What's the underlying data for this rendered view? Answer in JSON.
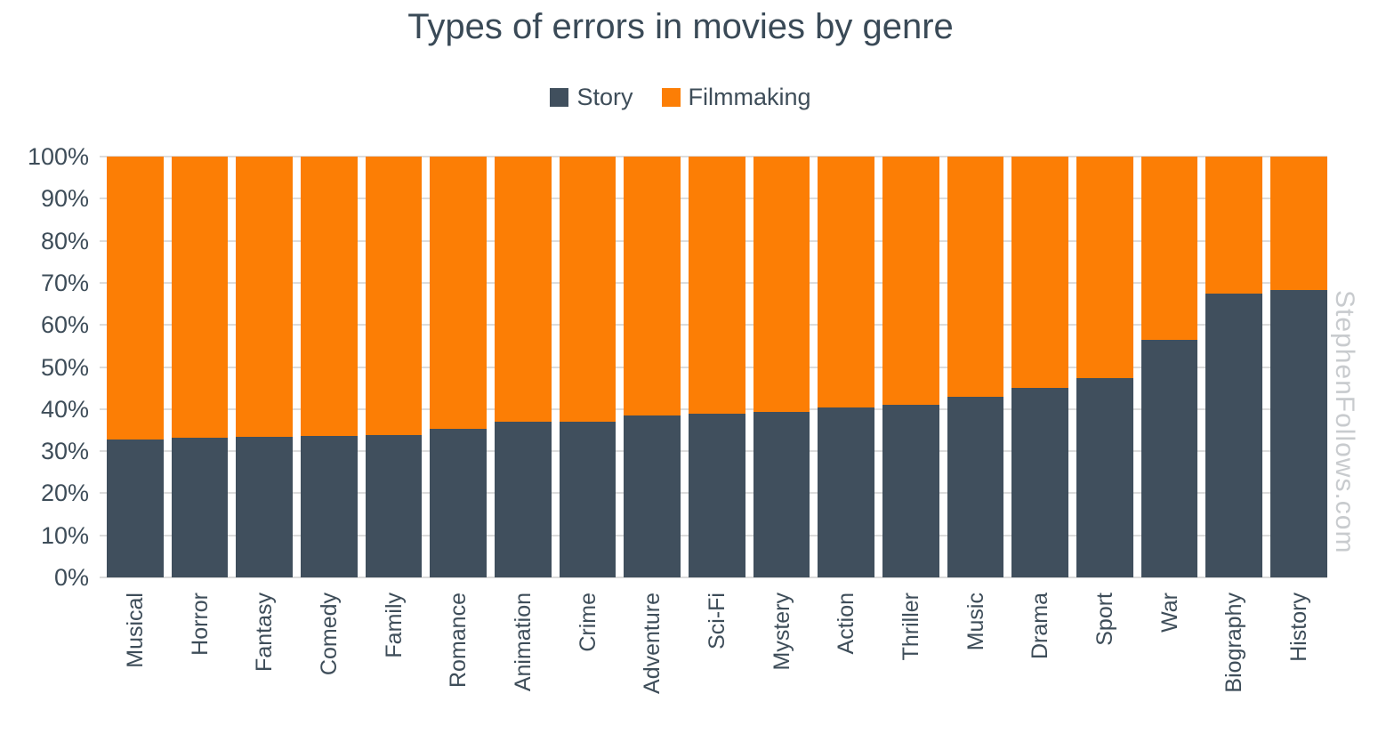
{
  "title": "Types of errors in movies by genre",
  "watermark": "StephenFollows.com",
  "colors": {
    "story": "#404f5d",
    "filmmaking": "#fc7e05",
    "gridline": "#dcdcdc",
    "axis_text": "#3e4d59",
    "title_text": "#3a4a57",
    "watermark_text": "#c8cbce",
    "background": "#ffffff"
  },
  "legend": {
    "items": [
      {
        "label": "Story",
        "color_key": "story"
      },
      {
        "label": "Filmmaking",
        "color_key": "filmmaking"
      }
    ]
  },
  "chart_data": {
    "type": "bar",
    "stacked": true,
    "percent_stacked": true,
    "title": "Types of errors in movies by genre",
    "xlabel": "",
    "ylabel": "",
    "ylim": [
      0,
      100
    ],
    "yticks": [
      "0%",
      "10%",
      "20%",
      "30%",
      "40%",
      "50%",
      "60%",
      "70%",
      "80%",
      "90%",
      "100%"
    ],
    "grid": true,
    "legend_position": "top",
    "categories": [
      "Musical",
      "Horror",
      "Fantasy",
      "Comedy",
      "Family",
      "Romance",
      "Animation",
      "Crime",
      "Adventure",
      "Sci-Fi",
      "Mystery",
      "Action",
      "Thriller",
      "Music",
      "Drama",
      "Sport",
      "War",
      "Biography",
      "History"
    ],
    "series": [
      {
        "name": "Story",
        "values": [
          32.8,
          33.1,
          33.5,
          33.6,
          33.8,
          35.3,
          36.9,
          37.1,
          38.5,
          38.9,
          39.3,
          40.4,
          41.0,
          43.0,
          45.1,
          47.4,
          56.5,
          67.5,
          68.3
        ]
      },
      {
        "name": "Filmmaking",
        "values": [
          67.2,
          66.9,
          66.5,
          66.4,
          66.2,
          64.7,
          63.1,
          62.9,
          61.5,
          61.1,
          60.7,
          59.6,
          59.0,
          57.0,
          54.9,
          52.6,
          43.5,
          32.5,
          31.7
        ]
      }
    ]
  }
}
